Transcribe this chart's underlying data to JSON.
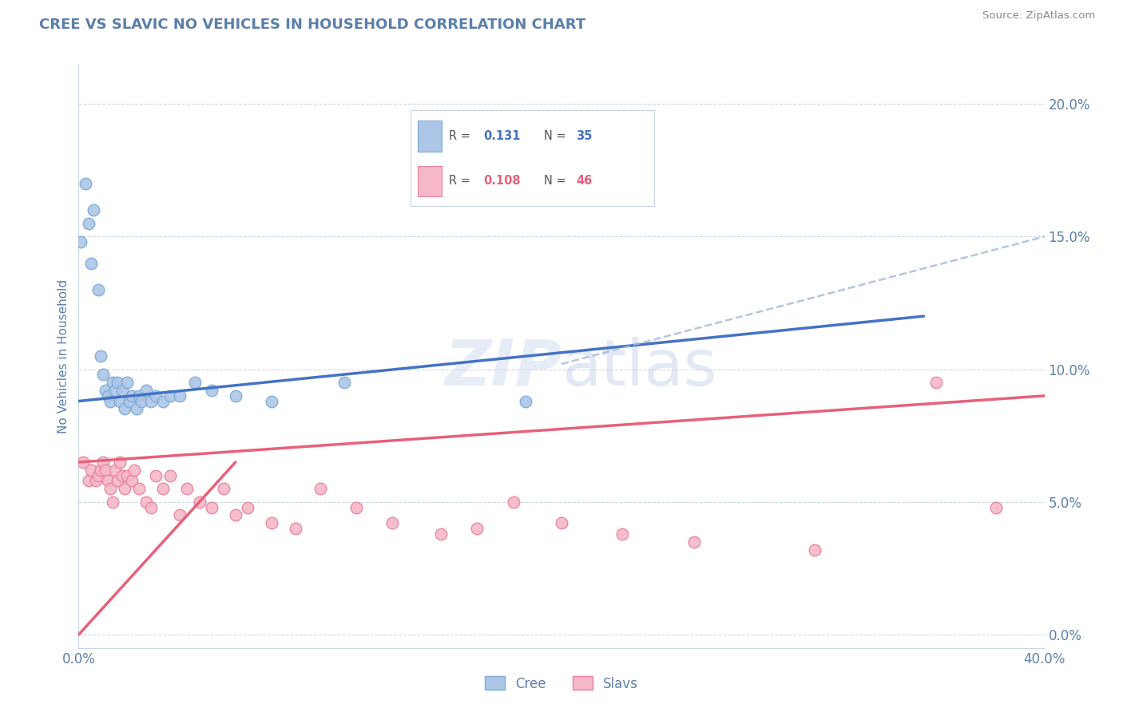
{
  "title": "CREE VS SLAVIC NO VEHICLES IN HOUSEHOLD CORRELATION CHART",
  "source": "Source: ZipAtlas.com",
  "ylabel": "No Vehicles in Household",
  "watermark": "ZIPatlas",
  "cree_R": 0.131,
  "cree_N": 35,
  "slavic_R": 0.108,
  "slavic_N": 46,
  "x_min": 0.0,
  "x_max": 0.4,
  "y_min": -0.005,
  "y_max": 0.215,
  "yticks": [
    0.0,
    0.05,
    0.1,
    0.15,
    0.2
  ],
  "ytick_labels": [
    "0.0%",
    "5.0%",
    "10.0%",
    "15.0%",
    "20.0%"
  ],
  "cree_color": "#adc6e8",
  "cree_edge": "#7aaad4",
  "slavic_color": "#f5b8c8",
  "slavic_edge": "#e8809a",
  "cree_line_color": "#4472c4",
  "slavic_line_color": "#e8607a",
  "background_color": "#ffffff",
  "grid_color": "#c8d4e8",
  "title_color": "#5b7faa",
  "axis_label_color": "#5b7faa",
  "tick_color": "#5b7faa",
  "source_color": "#888888",
  "cree_points_x": [
    0.001,
    0.003,
    0.004,
    0.005,
    0.006,
    0.008,
    0.009,
    0.01,
    0.011,
    0.012,
    0.013,
    0.014,
    0.015,
    0.016,
    0.017,
    0.018,
    0.019,
    0.02,
    0.021,
    0.022,
    0.024,
    0.025,
    0.026,
    0.028,
    0.03,
    0.032,
    0.035,
    0.038,
    0.042,
    0.048,
    0.055,
    0.065,
    0.08,
    0.11,
    0.185
  ],
  "cree_points_y": [
    0.148,
    0.17,
    0.155,
    0.14,
    0.16,
    0.13,
    0.105,
    0.098,
    0.092,
    0.09,
    0.088,
    0.095,
    0.092,
    0.095,
    0.088,
    0.092,
    0.085,
    0.095,
    0.088,
    0.09,
    0.085,
    0.09,
    0.088,
    0.092,
    0.088,
    0.09,
    0.088,
    0.09,
    0.09,
    0.095,
    0.092,
    0.09,
    0.088,
    0.095,
    0.088
  ],
  "slavic_points_x": [
    0.002,
    0.004,
    0.005,
    0.007,
    0.008,
    0.009,
    0.01,
    0.011,
    0.012,
    0.013,
    0.014,
    0.015,
    0.016,
    0.017,
    0.018,
    0.019,
    0.02,
    0.022,
    0.023,
    0.025,
    0.028,
    0.03,
    0.032,
    0.035,
    0.038,
    0.042,
    0.045,
    0.05,
    0.055,
    0.06,
    0.065,
    0.07,
    0.08,
    0.09,
    0.1,
    0.115,
    0.13,
    0.15,
    0.165,
    0.18,
    0.2,
    0.225,
    0.255,
    0.305,
    0.355,
    0.38
  ],
  "slavic_points_y": [
    0.065,
    0.058,
    0.062,
    0.058,
    0.06,
    0.062,
    0.065,
    0.062,
    0.058,
    0.055,
    0.05,
    0.062,
    0.058,
    0.065,
    0.06,
    0.055,
    0.06,
    0.058,
    0.062,
    0.055,
    0.05,
    0.048,
    0.06,
    0.055,
    0.06,
    0.045,
    0.055,
    0.05,
    0.048,
    0.055,
    0.045,
    0.048,
    0.042,
    0.04,
    0.055,
    0.048,
    0.042,
    0.038,
    0.04,
    0.05,
    0.042,
    0.038,
    0.035,
    0.032,
    0.095,
    0.048
  ]
}
